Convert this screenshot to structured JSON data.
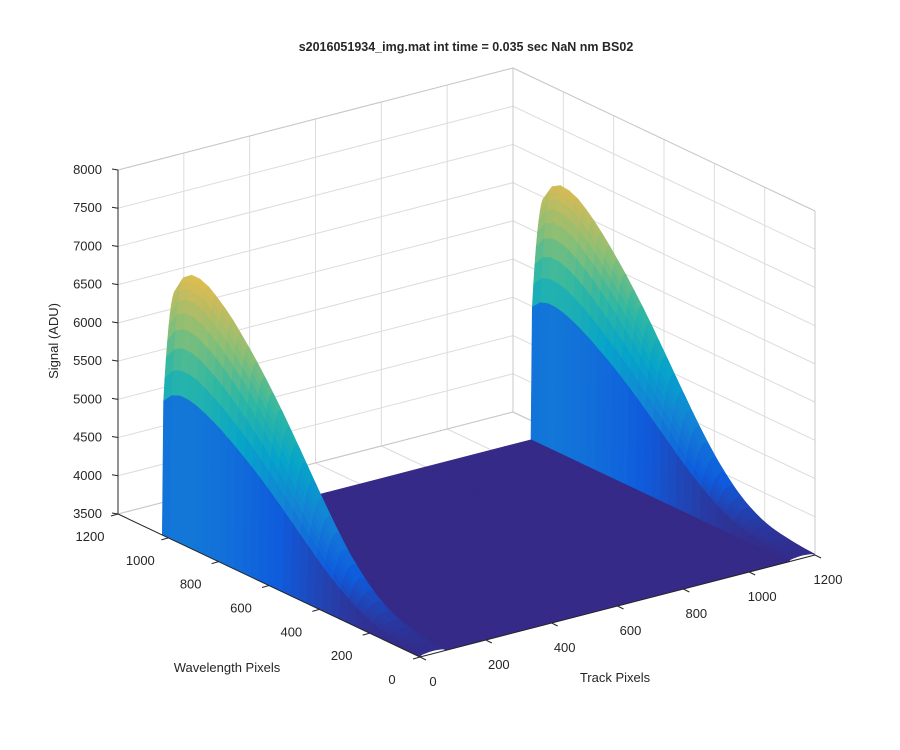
{
  "figure": {
    "background": "#ffffff",
    "axis_color": "#262626",
    "grid_color": "#dcdcdc"
  },
  "chart_data": {
    "type": "surface",
    "title": "s2016051934_img.mat int time = 0.035 sec  NaN nm BS02",
    "xlabel": "Track Pixels",
    "ylabel": "Wavelength Pixels",
    "zlabel": "Signal (ADU)",
    "xlim": [
      0,
      1200
    ],
    "ylim": [
      0,
      1200
    ],
    "zlim": [
      3500,
      8000
    ],
    "xticks": [
      "0",
      "200",
      "400",
      "600",
      "800",
      "1000",
      "1200"
    ],
    "yticks": [
      "0",
      "200",
      "400",
      "600",
      "800",
      "1000",
      "1200"
    ],
    "zticks": [
      "3500",
      "4000",
      "4500",
      "5000",
      "5500",
      "6000",
      "6500",
      "7000",
      "7500",
      "8000"
    ],
    "grid": true,
    "view": "3-D surface",
    "colormap": "parula",
    "colormap_stops": [
      "#352a87",
      "#0f5cdd",
      "#1481d6",
      "#06a4ca",
      "#2eb7a4",
      "#87bf77",
      "#d1bb59",
      "#fec832",
      "#f9fb0e"
    ],
    "baseline_signal": 3500,
    "wavelength_samples": [
      0,
      50,
      100,
      150,
      200,
      250,
      300,
      350,
      400,
      450,
      500,
      550,
      600,
      650,
      700,
      750,
      800,
      850,
      900,
      950,
      1000,
      1024
    ],
    "series": [
      {
        "track_range": [
          0,
          80
        ],
        "peak_track": 40,
        "signal_at_peak_track": [
          3540,
          3560,
          3600,
          3660,
          3760,
          3900,
          4080,
          4300,
          4560,
          4840,
          5130,
          5420,
          5700,
          5960,
          6200,
          6420,
          6620,
          6790,
          6920,
          6980,
          6850,
          6650
        ]
      },
      {
        "track_range": [
          1120,
          1200
        ],
        "peak_track": 1160,
        "signal_at_peak_track": [
          3540,
          3560,
          3600,
          3650,
          3740,
          3870,
          4040,
          4250,
          4490,
          4760,
          5040,
          5320,
          5600,
          5860,
          6100,
          6320,
          6520,
          6700,
          6830,
          6900,
          6800,
          6620
        ]
      }
    ]
  }
}
